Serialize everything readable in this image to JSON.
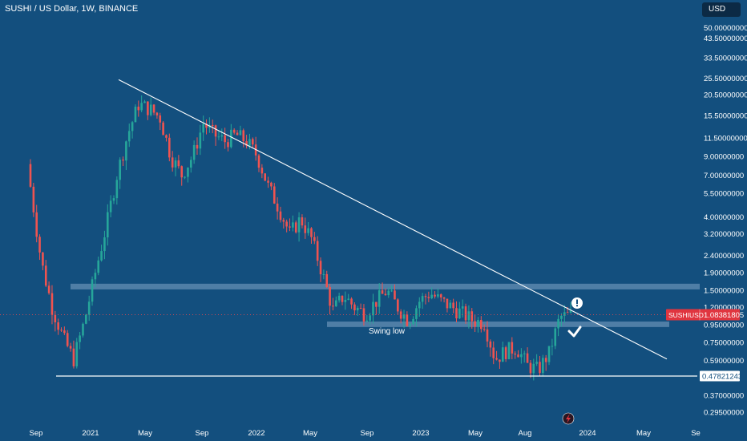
{
  "header": {
    "title": "SUSHI / US Dollar, 1W, BINANCE",
    "currency_button": "USD"
  },
  "colors": {
    "background": "#134f7e",
    "up": "#26a69a",
    "down": "#ef5350",
    "zone": "#5b86ad",
    "trendline": "#ffffff",
    "price_label": "#e0353f"
  },
  "chart_data": {
    "type": "candlestick",
    "title": "SUSHI / US Dollar, 1W, BINANCE",
    "y_scale": "log",
    "x_tick_labels": [
      "Sep",
      "2021",
      "May",
      "Sep",
      "2022",
      "May",
      "Sep",
      "2023",
      "May",
      "Aug",
      "2024",
      "May",
      "Se"
    ],
    "y_tick_labels": [
      "50.00000000",
      "43.50000000",
      "33.50000000",
      "25.50000000",
      "20.50000000",
      "15.50000000",
      "11.50000000",
      "9.00000000",
      "7.00000000",
      "5.50000000",
      "4.00000000",
      "3.20000000",
      "2.40000000",
      "1.90000000",
      "1.50000000",
      "1.20000000",
      "0.95000000",
      "0.75000000",
      "0.59000000",
      "0.37000000",
      "0.29500000"
    ],
    "ticks": [
      {
        "label": "50.00000000",
        "value": 50.0
      },
      {
        "label": "43.50000000",
        "value": 43.5
      },
      {
        "label": "33.50000000",
        "value": 33.5
      },
      {
        "label": "25.50000000",
        "value": 25.5
      },
      {
        "label": "20.50000000",
        "value": 20.5
      },
      {
        "label": "15.50000000",
        "value": 15.5
      },
      {
        "label": "11.50000000",
        "value": 11.5
      },
      {
        "label": "9.00000000",
        "value": 9.0
      },
      {
        "label": "7.00000000",
        "value": 7.0
      },
      {
        "label": "5.50000000",
        "value": 5.5
      },
      {
        "label": "4.00000000",
        "value": 4.0
      },
      {
        "label": "3.20000000",
        "value": 3.2
      },
      {
        "label": "2.40000000",
        "value": 2.4
      },
      {
        "label": "1.90000000",
        "value": 1.9
      },
      {
        "label": "1.50000000",
        "value": 1.5
      },
      {
        "label": "1.20000000",
        "value": 1.2
      },
      {
        "label": "0.95000000",
        "value": 0.95
      },
      {
        "label": "0.75000000",
        "value": 0.75
      },
      {
        "label": "0.59000000",
        "value": 0.59
      },
      {
        "label": "0.37000000",
        "value": 0.37
      },
      {
        "label": "0.29500000",
        "value": 0.295
      }
    ],
    "symbol_label": "SUSHIUSD",
    "current_price": "1.08381805",
    "current_price_value": 1.0838,
    "support_price": "0.47821243",
    "support_price_value": 0.4782,
    "zones": [
      {
        "low": 1.52,
        "high": 1.64
      },
      {
        "low": 0.92,
        "high": 0.99
      }
    ],
    "trendline": {
      "start": 25.0,
      "end": 0.6
    },
    "annotation_text": "Swing low",
    "price_path": [
      6.0,
      2.2,
      1.2,
      0.8,
      0.6,
      1.0,
      1.9,
      3.5,
      7.0,
      12.0,
      18.0,
      17.0,
      15.0,
      9.0,
      7.0,
      9.0,
      14.0,
      12.0,
      11.0,
      12.0,
      11.0,
      9.0,
      6.0,
      4.5,
      3.2,
      3.9,
      3.0,
      1.9,
      1.15,
      1.4,
      1.2,
      1.1,
      1.3,
      1.5,
      1.2,
      1.0,
      1.3,
      1.45,
      1.3,
      1.2,
      1.1,
      1.0,
      0.98,
      0.6,
      0.67,
      0.7,
      0.55,
      0.52,
      0.65,
      1.05,
      1.08
    ]
  }
}
